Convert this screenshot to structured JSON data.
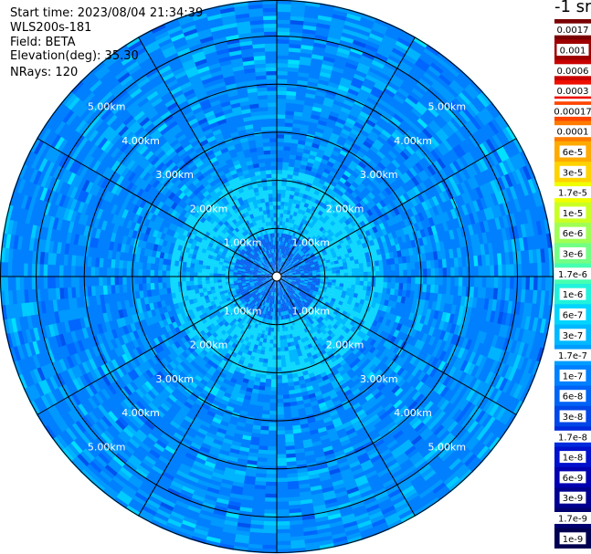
{
  "info": {
    "start_time": "Start time: 2023/08/04 21:34:39",
    "instrument": "WLS200s-181",
    "field": "Field: BETA",
    "elevation": "Elevation(deg): 35.30",
    "nrays": "NRays: 120"
  },
  "chart_data": {
    "type": "heatmap",
    "projection": "polar PPI",
    "nrays": 120,
    "range_rings": [
      {
        "label": "1.00km",
        "range_km": 1.0
      },
      {
        "label": "2.00km",
        "range_km": 2.0
      },
      {
        "label": "3.00km",
        "range_km": 3.0
      },
      {
        "label": "4.00km",
        "range_km": 4.0
      },
      {
        "label": "5.00km",
        "range_km": 5.0
      }
    ],
    "max_range_km": 5.75,
    "colorbar": {
      "unit_label": "-1 sr",
      "ticks": [
        "0.0017",
        "0.001",
        "0.0006",
        "0.0003",
        "0.00017",
        "0.0001",
        "6e-5",
        "3e-5",
        "1.7e-5",
        "1e-5",
        "6e-6",
        "3e-6",
        "1.7e-6",
        "1e-6",
        "6e-7",
        "3e-7",
        "1.7e-7",
        "1e-7",
        "6e-8",
        "3e-8",
        "1.7e-8",
        "1e-8",
        "6e-9",
        "3e-9",
        "1.7e-9",
        "1e-9"
      ],
      "colors": [
        "#7a0000",
        "#9e0000",
        "#c80000",
        "#ee0f00",
        "#ff4500",
        "#ff7b00",
        "#ffaa00",
        "#ffd200",
        "#f0ff00",
        "#caff24",
        "#9fff54",
        "#72ff84",
        "#46ffb0",
        "#21f2dc",
        "#00d4ff",
        "#00b8ff",
        "#009cff",
        "#0080ff",
        "#0063f6",
        "#0046e8",
        "#002add",
        "#0010cc",
        "#0000b0",
        "#000090",
        "#000070",
        "#000050"
      ]
    }
  }
}
